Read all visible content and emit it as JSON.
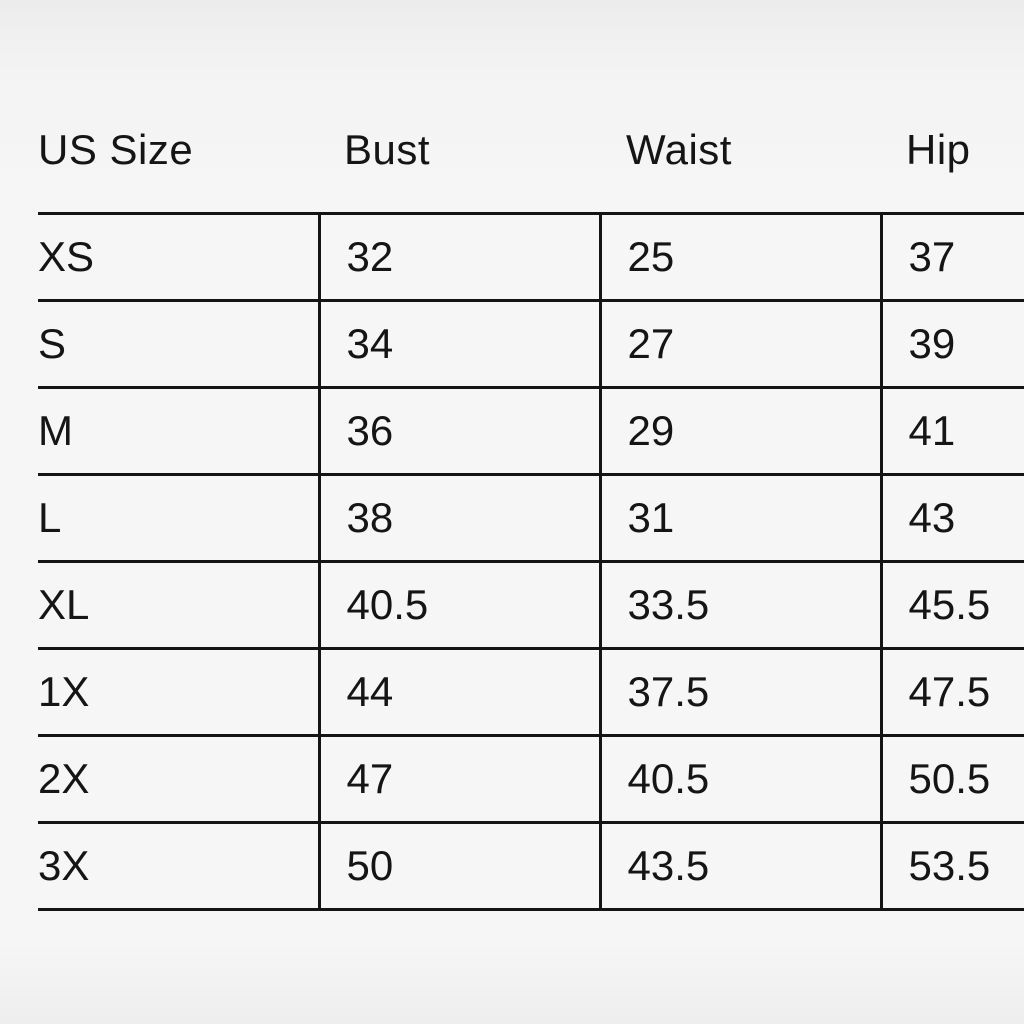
{
  "headers": [
    "US Size",
    "Bust",
    "Waist",
    "Hip"
  ],
  "rows": [
    [
      "XS",
      "32",
      "25",
      "37"
    ],
    [
      "S",
      "34",
      "27",
      "39"
    ],
    [
      "M",
      "36",
      "29",
      "41"
    ],
    [
      "L",
      "38",
      "31",
      "43"
    ],
    [
      "XL",
      "40.5",
      "33.5",
      "45.5"
    ],
    [
      "1X",
      "44",
      "37.5",
      "47.5"
    ],
    [
      "2X",
      "47",
      "40.5",
      "50.5"
    ],
    [
      "3X",
      "50",
      "43.5",
      "53.5"
    ]
  ]
}
